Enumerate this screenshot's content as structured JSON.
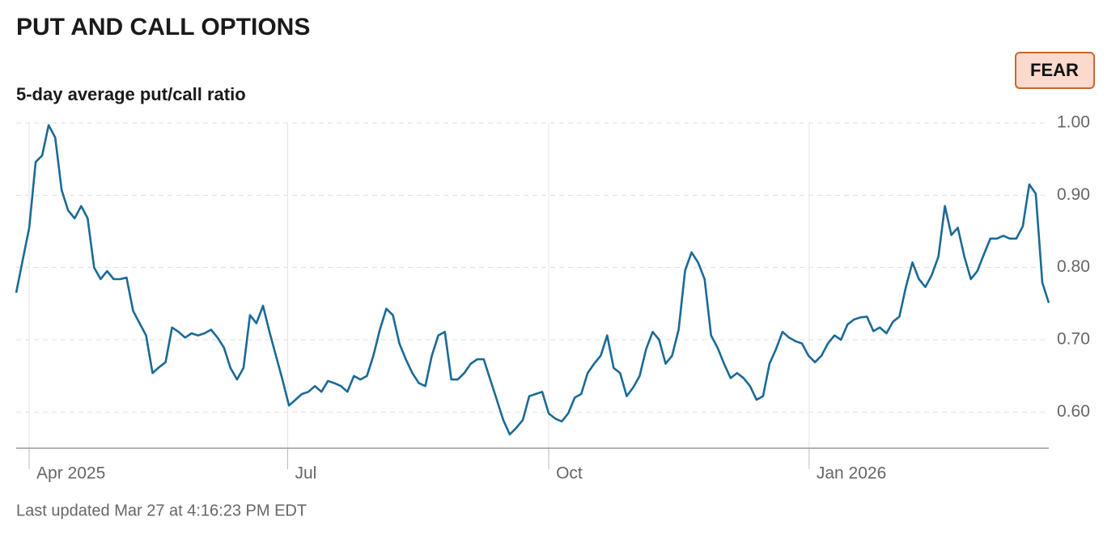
{
  "chart_data": {
    "type": "line",
    "title": "PUT AND CALL OPTIONS",
    "subtitle": "5-day average put/call ratio",
    "status": "FEAR",
    "footer": "Last updated Mar 27 at 4:16:23 PM EDT",
    "color": "#1a6a96",
    "values": [
      0.765,
      0.81,
      0.855,
      0.946,
      0.955,
      0.997,
      0.98,
      0.907,
      0.879,
      0.868,
      0.885,
      0.868,
      0.8,
      0.784,
      0.795,
      0.784,
      0.784,
      0.786,
      0.74,
      0.723,
      0.706,
      0.654,
      0.662,
      0.669,
      0.717,
      0.711,
      0.703,
      0.709,
      0.706,
      0.709,
      0.714,
      0.703,
      0.689,
      0.661,
      0.645,
      0.661,
      0.734,
      0.723,
      0.747,
      0.711,
      0.678,
      0.645,
      0.609,
      0.617,
      0.625,
      0.628,
      0.636,
      0.628,
      0.643,
      0.64,
      0.636,
      0.628,
      0.65,
      0.645,
      0.65,
      0.678,
      0.714,
      0.743,
      0.734,
      0.695,
      0.673,
      0.654,
      0.64,
      0.636,
      0.678,
      0.706,
      0.711,
      0.645,
      0.645,
      0.654,
      0.667,
      0.673,
      0.673,
      0.645,
      0.617,
      0.589,
      0.569,
      0.578,
      0.589,
      0.622,
      0.625,
      0.628,
      0.598,
      0.591,
      0.587,
      0.598,
      0.62,
      0.625,
      0.654,
      0.667,
      0.678,
      0.706,
      0.661,
      0.654,
      0.622,
      0.634,
      0.65,
      0.687,
      0.711,
      0.7,
      0.667,
      0.678,
      0.714,
      0.796,
      0.821,
      0.807,
      0.784,
      0.706,
      0.689,
      0.667,
      0.647,
      0.654,
      0.647,
      0.636,
      0.617,
      0.622,
      0.667,
      0.687,
      0.711,
      0.703,
      0.698,
      0.695,
      0.678,
      0.669,
      0.678,
      0.695,
      0.706,
      0.7,
      0.721,
      0.728,
      0.731,
      0.732,
      0.712,
      0.717,
      0.709,
      0.725,
      0.732,
      0.773,
      0.807,
      0.784,
      0.773,
      0.79,
      0.815,
      0.885,
      0.845,
      0.855,
      0.815,
      0.784,
      0.795,
      0.818,
      0.84,
      0.84,
      0.844,
      0.84,
      0.84,
      0.857,
      0.915,
      0.902,
      0.779,
      0.751
    ],
    "xlim": [
      0,
      159
    ],
    "xticks": [
      {
        "value": 2,
        "label": "Apr 2025"
      },
      {
        "value": 41.8,
        "label": "Jul"
      },
      {
        "value": 82,
        "label": "Oct"
      },
      {
        "value": 122.1,
        "label": "Jan 2026"
      }
    ],
    "ylim": [
      0.55,
      1.0
    ],
    "yticks": [
      {
        "value": 0.6,
        "label": "0.60"
      },
      {
        "value": 0.7,
        "label": "0.70"
      },
      {
        "value": 0.8,
        "label": "0.80"
      },
      {
        "value": 0.9,
        "label": "0.90"
      },
      {
        "value": 1.0,
        "label": "1.00"
      }
    ],
    "grid": true
  }
}
